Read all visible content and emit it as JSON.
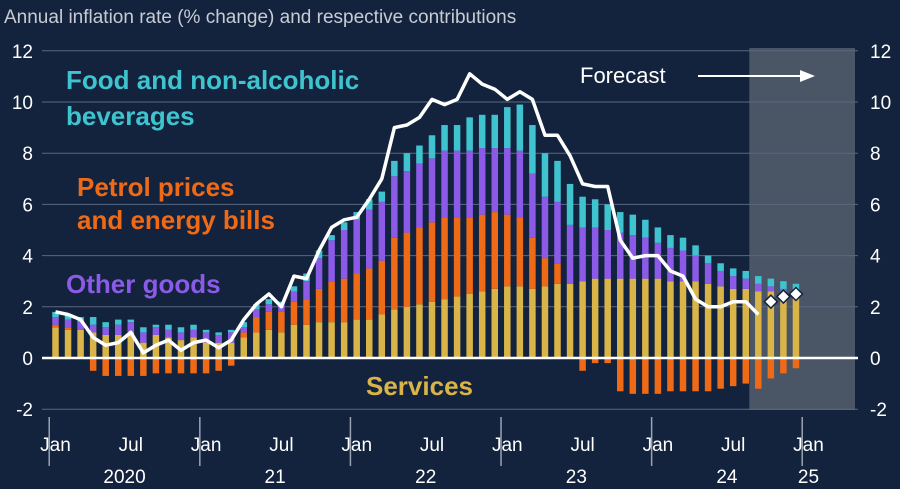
{
  "chart_data": {
    "type": "bar",
    "subtype": "stacked-bar-with-line",
    "title": "Annual inflation rate (% change) and respective contributions",
    "ylim": [
      -2,
      12
    ],
    "yticks": [
      "-2",
      "0",
      "2",
      "4",
      "6",
      "8",
      "10",
      "12"
    ],
    "yticks_right": [
      "-2",
      "0",
      "2",
      "4",
      "6",
      "8",
      "10",
      "12"
    ],
    "x_month_labels": [
      "Jan",
      "Jul",
      "Jan",
      "Jul",
      "Jan",
      "Jul",
      "Jan",
      "Jul",
      "Jan",
      "Jul",
      "Jan"
    ],
    "x_year_labels": [
      "2020",
      "21",
      "22",
      "23",
      "24",
      "25"
    ],
    "forecast_label": "Forecast",
    "colors": {
      "background": "#13233d",
      "services": "#d9b448",
      "energy": "#ef6a16",
      "other_goods": "#8b5be8",
      "food": "#3fc4cf",
      "inflation_line": "#ffffff",
      "forecast_shade": "#4a5566"
    },
    "series_labels": {
      "food": "Food and non-alcoholic beverages",
      "energy": "Petrol prices and energy bills",
      "other_goods": "Other goods",
      "services": "Services"
    },
    "months": [
      "Jan 2020",
      "Feb 2020",
      "Mar 2020",
      "Apr 2020",
      "May 2020",
      "Jun 2020",
      "Jul 2020",
      "Aug 2020",
      "Sep 2020",
      "Oct 2020",
      "Nov 2020",
      "Dec 2020",
      "Jan 2021",
      "Feb 2021",
      "Mar 2021",
      "Apr 2021",
      "May 2021",
      "Jun 2021",
      "Jul 2021",
      "Aug 2021",
      "Sep 2021",
      "Oct 2021",
      "Nov 2021",
      "Dec 2021",
      "Jan 2022",
      "Feb 2022",
      "Mar 2022",
      "Apr 2022",
      "May 2022",
      "Jun 2022",
      "Jul 2022",
      "Aug 2022",
      "Sep 2022",
      "Oct 2022",
      "Nov 2022",
      "Dec 2022",
      "Jan 2023",
      "Feb 2023",
      "Mar 2023",
      "Apr 2023",
      "May 2023",
      "Jun 2023",
      "Jul 2023",
      "Aug 2023",
      "Sep 2023",
      "Oct 2023",
      "Nov 2023",
      "Dec 2023",
      "Jan 2024",
      "Feb 2024",
      "Mar 2024",
      "Apr 2024",
      "May 2024",
      "Jun 2024",
      "Jul 2024",
      "Aug 2024",
      "Sep 2024",
      "Oct 2024",
      "Nov 2024",
      "Dec 2024"
    ],
    "services": [
      1.2,
      1.1,
      1.1,
      1.0,
      0.9,
      0.9,
      1.0,
      0.6,
      0.9,
      0.8,
      0.7,
      0.8,
      0.6,
      0.6,
      0.6,
      0.8,
      1.0,
      1.1,
      1.0,
      1.3,
      1.3,
      1.4,
      1.4,
      1.4,
      1.5,
      1.5,
      1.7,
      1.9,
      2.0,
      2.1,
      2.2,
      2.3,
      2.4,
      2.5,
      2.6,
      2.7,
      2.8,
      2.8,
      2.7,
      2.8,
      2.9,
      2.9,
      3.0,
      3.1,
      3.1,
      3.1,
      3.1,
      3.1,
      3.1,
      3.0,
      3.0,
      3.0,
      2.9,
      2.8,
      2.7,
      2.7,
      2.6,
      2.6,
      2.5,
      2.4
    ],
    "energy": [
      0.1,
      0.1,
      0.0,
      -0.5,
      -0.7,
      -0.7,
      -0.7,
      -0.7,
      -0.6,
      -0.6,
      -0.6,
      -0.6,
      -0.6,
      -0.5,
      -0.3,
      0.2,
      0.6,
      0.7,
      0.8,
      0.9,
      1.0,
      1.3,
      1.6,
      1.7,
      1.8,
      2.0,
      2.1,
      2.8,
      2.9,
      3.0,
      3.1,
      3.2,
      3.1,
      3.0,
      3.0,
      3.0,
      2.8,
      2.7,
      2.0,
      1.1,
      0.8,
      0.0,
      -0.5,
      -0.2,
      -0.2,
      -1.3,
      -1.4,
      -1.4,
      -1.4,
      -1.3,
      -1.3,
      -1.3,
      -1.3,
      -1.2,
      -1.1,
      -1.0,
      -1.2,
      -0.8,
      -0.6,
      -0.4
    ],
    "other_goods": [
      0.3,
      0.3,
      0.3,
      0.3,
      0.3,
      0.4,
      0.4,
      0.4,
      0.3,
      0.3,
      0.3,
      0.3,
      0.4,
      0.3,
      0.4,
      0.2,
      0.3,
      0.3,
      0.3,
      0.4,
      0.7,
      1.2,
      1.6,
      1.9,
      2.1,
      2.3,
      2.3,
      2.4,
      2.4,
      2.5,
      2.5,
      2.6,
      2.6,
      2.6,
      2.6,
      2.5,
      2.6,
      2.6,
      2.5,
      2.4,
      2.4,
      2.3,
      2.1,
      2.0,
      1.9,
      1.8,
      1.7,
      1.6,
      1.4,
      1.3,
      1.2,
      1.0,
      0.8,
      0.6,
      0.5,
      0.4,
      0.3,
      0.2,
      0.2,
      0.2
    ],
    "food": [
      0.2,
      0.2,
      0.2,
      0.3,
      0.2,
      0.2,
      0.1,
      0.2,
      0.1,
      0.2,
      0.2,
      0.2,
      0.1,
      0.1,
      0.1,
      0.2,
      0.2,
      0.2,
      0.1,
      0.2,
      0.3,
      0.3,
      0.2,
      0.3,
      0.3,
      0.4,
      0.4,
      0.6,
      0.7,
      0.7,
      0.9,
      1.0,
      1.0,
      1.3,
      1.3,
      1.3,
      1.6,
      1.8,
      1.9,
      1.7,
      1.6,
      1.6,
      1.2,
      1.1,
      1.0,
      0.8,
      0.8,
      0.7,
      0.6,
      0.5,
      0.5,
      0.4,
      0.3,
      0.3,
      0.3,
      0.3,
      0.3,
      0.3,
      0.3,
      0.3
    ],
    "inflation_line": [
      1.8,
      1.7,
      1.5,
      0.8,
      0.5,
      0.6,
      1.0,
      0.2,
      0.5,
      0.7,
      0.3,
      0.6,
      0.7,
      0.4,
      0.7,
      1.5,
      2.1,
      2.5,
      2.0,
      3.2,
      3.1,
      4.2,
      5.1,
      5.4,
      5.5,
      6.2,
      7.0,
      9.0,
      9.1,
      9.4,
      10.1,
      9.9,
      10.1,
      11.1,
      10.7,
      10.5,
      10.1,
      10.4,
      10.1,
      8.7,
      8.7,
      7.9,
      6.8,
      6.7,
      6.7,
      4.6,
      3.9,
      4.0,
      4.0,
      3.4,
      3.2,
      2.3,
      2.0,
      2.0,
      2.2,
      2.2,
      1.7
    ],
    "forecast_points": [
      {
        "month": "Oct 2024",
        "value": 2.2
      },
      {
        "month": "Nov 2024",
        "value": 2.4
      },
      {
        "month": "Dec 2024",
        "value": 2.5
      }
    ],
    "forecast_start": "Sep 2024"
  }
}
